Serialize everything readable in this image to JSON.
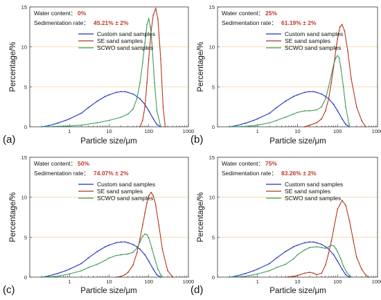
{
  "colors": {
    "custom": "#1f2fc4",
    "se": "#b5351c",
    "scwo": "#3b9a5c",
    "grid5": "#f2d9a8",
    "grid10": "#f2d9a8",
    "value_text": "#c0392b"
  },
  "chart_data": [
    {
      "type": "line",
      "panel_label": "(a)",
      "xlabel": "Particle size/μm",
      "ylabel": "Percentage/%",
      "xscale": "log",
      "xlim": [
        0.1,
        1000
      ],
      "ylim": [
        0,
        15
      ],
      "xticks": [
        "1",
        "10",
        "100",
        "1000"
      ],
      "yticks": [
        "0",
        "5",
        "10",
        "15"
      ],
      "grid": "horizontal at 5 and 10",
      "annotations": {
        "water_label": "Water content：",
        "water_value": "0%",
        "sed_label": "Sedimentation rate：",
        "sed_value": "45.21% ± 2%"
      },
      "legend": [
        "Custom sand samples",
        "SE sand samples",
        "SCWO sand samples"
      ],
      "series": [
        {
          "name": "Custom sand samples",
          "x": [
            0.2,
            0.3,
            0.5,
            0.8,
            1,
            2,
            3,
            5,
            8,
            10,
            15,
            20,
            25,
            30,
            40,
            50,
            60,
            80,
            100,
            130,
            160,
            200
          ],
          "y": [
            0,
            0.15,
            0.45,
            0.8,
            1.0,
            1.7,
            2.4,
            3.2,
            3.8,
            4.0,
            4.3,
            4.4,
            4.4,
            4.3,
            4.1,
            3.8,
            3.5,
            2.8,
            2.0,
            1.0,
            0.3,
            0
          ]
        },
        {
          "name": "SE sand samples",
          "x": [
            60,
            70,
            80,
            90,
            100,
            115,
            130,
            150,
            170,
            200,
            230,
            260
          ],
          "y": [
            0,
            0.8,
            2.5,
            5.5,
            8.5,
            12.0,
            14.0,
            14.8,
            13.5,
            8.5,
            2.5,
            0
          ]
        },
        {
          "name": "SCWO sand samples",
          "x": [
            0.2,
            0.5,
            1,
            2,
            5,
            10,
            20,
            30,
            40,
            50,
            60,
            70,
            80,
            90,
            100,
            110,
            120,
            140,
            160,
            200
          ],
          "y": [
            0,
            0.05,
            0.1,
            0.2,
            0.5,
            0.8,
            1.2,
            1.6,
            2.2,
            3.5,
            5.5,
            8.0,
            10.5,
            12.8,
            13.5,
            12.5,
            10.5,
            5.5,
            2.0,
            0
          ]
        }
      ]
    },
    {
      "type": "line",
      "panel_label": "(b)",
      "xlabel": "Particle size/μm",
      "ylabel": "Percentage/%",
      "xscale": "log",
      "xlim": [
        0.1,
        1000
      ],
      "ylim": [
        0,
        15
      ],
      "xticks": [
        "1",
        "10",
        "100",
        "1000"
      ],
      "yticks": [
        "0",
        "5",
        "10",
        "15"
      ],
      "grid": "horizontal at 5 and 10",
      "annotations": {
        "water_label": "Water content：",
        "water_value": "25%",
        "sed_label": "Sedimentation rate：",
        "sed_value": "61.19% ± 2%"
      },
      "legend": [
        "Custom sand samples",
        "SE sand samples",
        "SCWO sand samples"
      ],
      "series": [
        {
          "name": "Custom sand samples",
          "x": [
            0.2,
            0.3,
            0.5,
            0.8,
            1,
            2,
            3,
            5,
            8,
            10,
            15,
            20,
            25,
            30,
            40,
            50,
            60,
            80,
            100,
            130,
            160,
            200
          ],
          "y": [
            0,
            0.15,
            0.45,
            0.8,
            1.0,
            1.7,
            2.4,
            3.2,
            3.8,
            4.0,
            4.3,
            4.4,
            4.4,
            4.3,
            4.1,
            3.8,
            3.5,
            2.8,
            2.0,
            1.0,
            0.3,
            0
          ]
        },
        {
          "name": "SE sand samples",
          "x": [
            15,
            20,
            30,
            40,
            50,
            60,
            70,
            80,
            90,
            100,
            115,
            130,
            150,
            180,
            220,
            300,
            400,
            500
          ],
          "y": [
            0,
            0.2,
            0.5,
            1.0,
            2.0,
            3.5,
            5.5,
            7.5,
            9.5,
            11.0,
            12.5,
            12.8,
            12.0,
            9.5,
            6.0,
            2.5,
            0.8,
            0
          ]
        },
        {
          "name": "SCWO sand samples",
          "x": [
            0.2,
            0.5,
            1,
            2,
            3,
            5,
            8,
            10,
            15,
            20,
            30,
            40,
            50,
            60,
            70,
            80,
            90,
            100,
            110,
            120,
            140,
            160,
            200
          ],
          "y": [
            0,
            0.05,
            0.2,
            0.5,
            0.8,
            1.2,
            1.6,
            1.8,
            2.0,
            2.0,
            2.1,
            2.5,
            3.5,
            5.0,
            6.5,
            7.8,
            8.6,
            8.9,
            8.6,
            7.5,
            5.0,
            2.5,
            0
          ]
        }
      ]
    },
    {
      "type": "line",
      "panel_label": "(c)",
      "xlabel": "Particle size/μm",
      "ylabel": "Percentage/%",
      "xscale": "log",
      "xlim": [
        0.1,
        1000
      ],
      "ylim": [
        0,
        15
      ],
      "xticks": [
        "1",
        "10",
        "100",
        "1000"
      ],
      "yticks": [
        "0",
        "5",
        "10",
        "15"
      ],
      "grid": "horizontal at 5 and 10",
      "annotations": {
        "water_label": "Water content：",
        "water_value": "50%",
        "sed_label": "Sedimentation rate：",
        "sed_value": "74.07% ± 2%"
      },
      "legend": [
        "Custom sand samples",
        "SE sand samples",
        "SCWO sand samples"
      ],
      "series": [
        {
          "name": "Custom sand samples",
          "x": [
            0.2,
            0.3,
            0.5,
            0.8,
            1,
            2,
            3,
            5,
            8,
            10,
            15,
            20,
            25,
            30,
            40,
            50,
            60,
            80,
            100,
            130,
            160,
            200
          ],
          "y": [
            0,
            0.15,
            0.45,
            0.8,
            1.0,
            1.7,
            2.4,
            3.2,
            3.8,
            4.0,
            4.3,
            4.4,
            4.4,
            4.3,
            4.1,
            3.8,
            3.5,
            2.8,
            2.0,
            1.0,
            0.3,
            0
          ]
        },
        {
          "name": "SE sand samples",
          "x": [
            15,
            20,
            25,
            30,
            40,
            50,
            60,
            70,
            80,
            90,
            100,
            115,
            130,
            150,
            180,
            220,
            300,
            400
          ],
          "y": [
            0,
            0.1,
            0.3,
            0.6,
            1.5,
            3.0,
            4.8,
            6.5,
            8.0,
            9.3,
            10.2,
            10.6,
            10.2,
            9.0,
            6.5,
            3.5,
            0.8,
            0
          ]
        },
        {
          "name": "SCWO sand samples",
          "x": [
            0.2,
            0.5,
            1,
            2,
            3,
            5,
            8,
            10,
            15,
            20,
            30,
            40,
            50,
            60,
            70,
            80,
            90,
            100,
            120,
            140,
            170,
            200,
            230
          ],
          "y": [
            0,
            0.1,
            0.4,
            0.8,
            1.2,
            1.6,
            2.1,
            2.4,
            2.7,
            2.8,
            2.9,
            3.1,
            3.6,
            4.4,
            5.1,
            5.4,
            5.3,
            4.9,
            3.6,
            2.4,
            1.0,
            0.3,
            0
          ]
        }
      ]
    },
    {
      "type": "line",
      "panel_label": "(d)",
      "xlabel": "Particle size/μm",
      "ylabel": "Percentage/%",
      "xscale": "log",
      "xlim": [
        0.1,
        1000
      ],
      "ylim": [
        0,
        15
      ],
      "xticks": [
        "1",
        "10",
        "100",
        "1000"
      ],
      "yticks": [
        "0",
        "5",
        "10",
        "15"
      ],
      "grid": "horizontal at 5 and 10",
      "annotations": {
        "water_label": "Water content：",
        "water_value": "75%",
        "sed_label": "Sedimentation rate：",
        "sed_value": "83.26% ± 2%"
      },
      "legend": [
        "Custom sand samples",
        "SE sand samples",
        "SCWO sand samples"
      ],
      "series": [
        {
          "name": "Custom sand samples",
          "x": [
            0.2,
            0.3,
            0.5,
            0.8,
            1,
            2,
            3,
            5,
            8,
            10,
            15,
            20,
            25,
            30,
            40,
            50,
            60,
            80,
            100,
            130,
            160,
            200
          ],
          "y": [
            0,
            0.15,
            0.45,
            0.8,
            1.0,
            1.7,
            2.4,
            3.2,
            3.8,
            4.0,
            4.3,
            4.4,
            4.4,
            4.3,
            4.1,
            3.8,
            3.5,
            2.8,
            2.0,
            1.0,
            0.3,
            0
          ]
        },
        {
          "name": "SE sand samples",
          "x": [
            5,
            8,
            10,
            15,
            20,
            25,
            30,
            40,
            50,
            60,
            70,
            80,
            100,
            130,
            160,
            200,
            250,
            300,
            400,
            500,
            600
          ],
          "y": [
            0,
            0.1,
            0.2,
            0.5,
            0.6,
            0.5,
            0.3,
            0.5,
            1.5,
            3.0,
            4.5,
            6.0,
            8.5,
            9.6,
            9.0,
            7.0,
            4.5,
            2.5,
            1.0,
            0.3,
            0
          ]
        },
        {
          "name": "SCWO sand samples",
          "x": [
            0.2,
            0.5,
            1,
            2,
            3,
            5,
            8,
            10,
            15,
            20,
            30,
            40,
            50,
            60,
            70,
            80,
            90,
            100,
            120,
            140,
            170,
            200,
            230
          ],
          "y": [
            0,
            0.1,
            0.4,
            0.8,
            1.2,
            1.6,
            2.3,
            2.8,
            3.4,
            3.7,
            3.8,
            3.7,
            3.6,
            3.8,
            4.0,
            3.9,
            3.6,
            3.2,
            2.3,
            1.4,
            0.6,
            0.2,
            0
          ]
        }
      ]
    }
  ]
}
